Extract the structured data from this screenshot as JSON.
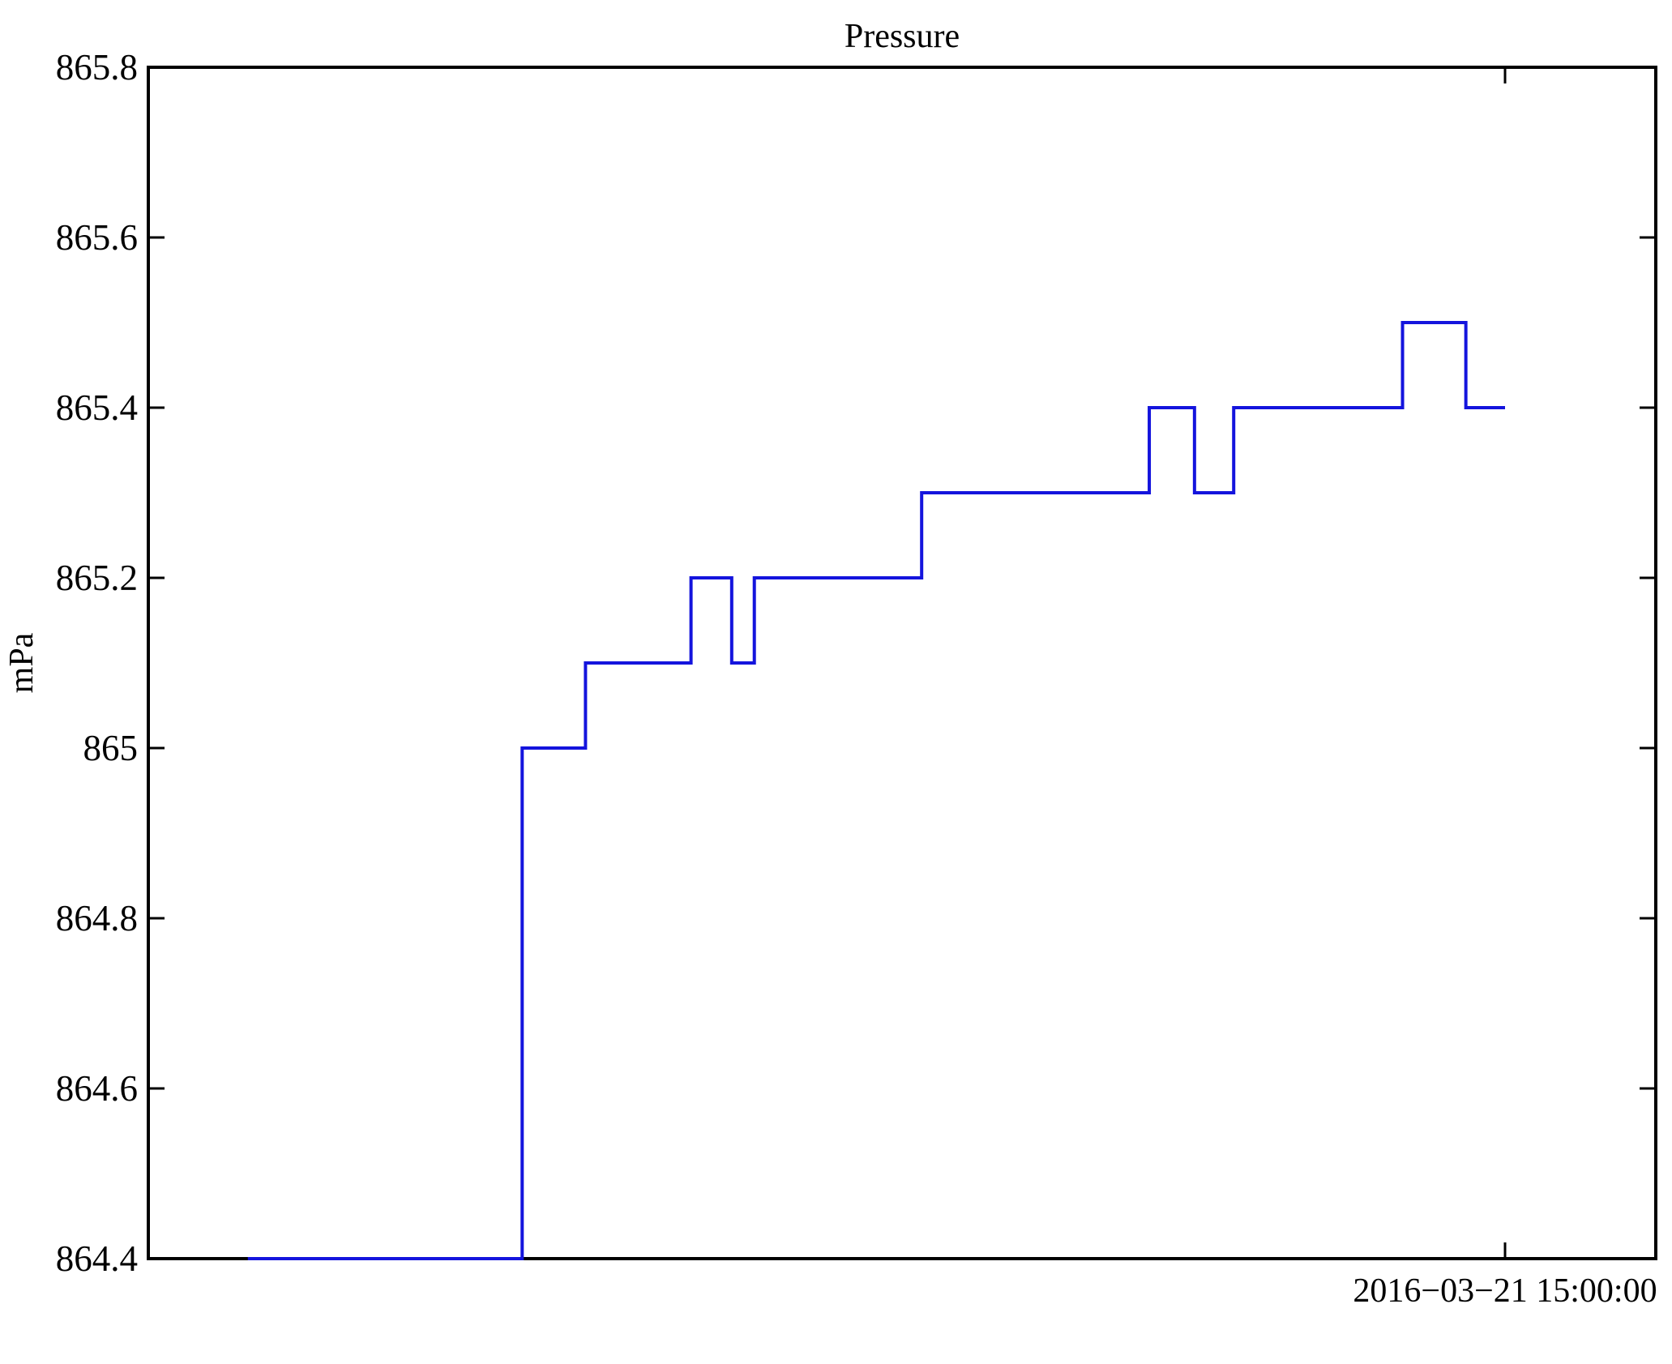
{
  "chart_data": {
    "type": "line",
    "line_style": "step",
    "title": "Pressure",
    "xlabel": "",
    "ylabel": "mPa",
    "ylim": [
      864.4,
      865.8
    ],
    "y_ticks": [
      864.4,
      864.6,
      864.8,
      865,
      865.2,
      865.4,
      865.6,
      865.8
    ],
    "y_tick_labels": [
      "864.4",
      "864.6",
      "864.8",
      "865",
      "865.2",
      "865.4",
      "865.6",
      "865.8"
    ],
    "x_ticks": [
      {
        "label": "2016−03−21 15:00:00",
        "position_frac": 0.9
      }
    ],
    "grid": false,
    "legend": null,
    "line_color": "#1414dd",
    "axis_color": "#000000",
    "background_color": "#ffffff",
    "series": [
      {
        "name": "Pressure",
        "unit": "mPa",
        "step_segments": [
          {
            "x_start_frac": 0.066,
            "x_end_frac": 0.248,
            "value": 864.4
          },
          {
            "x_start_frac": 0.248,
            "x_end_frac": 0.29,
            "value": 865.0
          },
          {
            "x_start_frac": 0.29,
            "x_end_frac": 0.36,
            "value": 865.1
          },
          {
            "x_start_frac": 0.36,
            "x_end_frac": 0.387,
            "value": 865.2
          },
          {
            "x_start_frac": 0.387,
            "x_end_frac": 0.402,
            "value": 865.1
          },
          {
            "x_start_frac": 0.402,
            "x_end_frac": 0.513,
            "value": 865.2
          },
          {
            "x_start_frac": 0.513,
            "x_end_frac": 0.664,
            "value": 865.3
          },
          {
            "x_start_frac": 0.664,
            "x_end_frac": 0.694,
            "value": 865.4
          },
          {
            "x_start_frac": 0.694,
            "x_end_frac": 0.72,
            "value": 865.3
          },
          {
            "x_start_frac": 0.72,
            "x_end_frac": 0.832,
            "value": 865.4
          },
          {
            "x_start_frac": 0.832,
            "x_end_frac": 0.874,
            "value": 865.5
          },
          {
            "x_start_frac": 0.874,
            "x_end_frac": 0.9,
            "value": 865.4
          }
        ]
      }
    ]
  }
}
